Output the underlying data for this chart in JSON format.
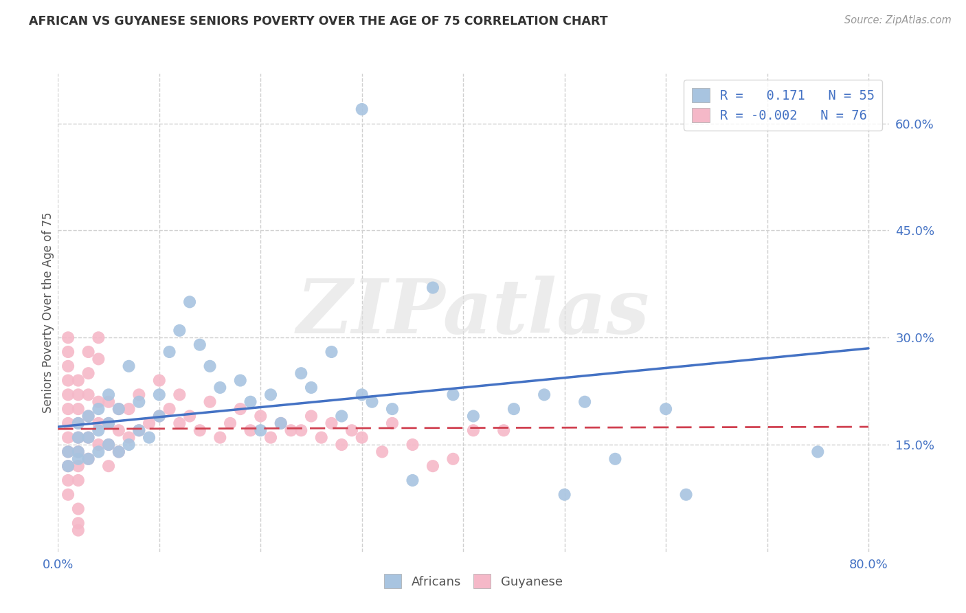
{
  "title": "AFRICAN VS GUYANESE SENIORS POVERTY OVER THE AGE OF 75 CORRELATION CHART",
  "source": "Source: ZipAtlas.com",
  "ylabel": "Seniors Poverty Over the Age of 75",
  "xlim": [
    0.0,
    0.82
  ],
  "ylim": [
    0.0,
    0.67
  ],
  "background_color": "#ffffff",
  "watermark_text": "ZIPatlas",
  "legend_R_african": "0.171",
  "legend_N_african": "55",
  "legend_R_guyanese": "-0.002",
  "legend_N_guyanese": "76",
  "african_color": "#a8c4e0",
  "guyanese_color": "#f5b8c8",
  "african_line_color": "#4472c4",
  "guyanese_line_color": "#d04050",
  "grid_color": "#d0d0d0",
  "africans_x": [
    0.01,
    0.01,
    0.02,
    0.02,
    0.02,
    0.02,
    0.03,
    0.03,
    0.03,
    0.04,
    0.04,
    0.04,
    0.05,
    0.05,
    0.05,
    0.06,
    0.06,
    0.07,
    0.07,
    0.08,
    0.08,
    0.09,
    0.1,
    0.1,
    0.11,
    0.12,
    0.13,
    0.14,
    0.15,
    0.16,
    0.18,
    0.19,
    0.2,
    0.21,
    0.22,
    0.24,
    0.25,
    0.27,
    0.28,
    0.3,
    0.31,
    0.33,
    0.35,
    0.37,
    0.39,
    0.41,
    0.45,
    0.48,
    0.5,
    0.52,
    0.55,
    0.6,
    0.62,
    0.75,
    0.3
  ],
  "africans_y": [
    0.14,
    0.12,
    0.13,
    0.14,
    0.16,
    0.18,
    0.13,
    0.16,
    0.19,
    0.14,
    0.17,
    0.2,
    0.15,
    0.18,
    0.22,
    0.14,
    0.2,
    0.15,
    0.26,
    0.17,
    0.21,
    0.16,
    0.19,
    0.22,
    0.28,
    0.31,
    0.35,
    0.29,
    0.26,
    0.23,
    0.24,
    0.21,
    0.17,
    0.22,
    0.18,
    0.25,
    0.23,
    0.28,
    0.19,
    0.22,
    0.21,
    0.2,
    0.1,
    0.37,
    0.22,
    0.19,
    0.2,
    0.22,
    0.08,
    0.21,
    0.13,
    0.2,
    0.08,
    0.14,
    0.62
  ],
  "guyanese_x": [
    0.01,
    0.01,
    0.01,
    0.01,
    0.01,
    0.01,
    0.01,
    0.01,
    0.01,
    0.01,
    0.01,
    0.01,
    0.02,
    0.02,
    0.02,
    0.02,
    0.02,
    0.02,
    0.02,
    0.02,
    0.02,
    0.02,
    0.02,
    0.03,
    0.03,
    0.03,
    0.03,
    0.03,
    0.03,
    0.04,
    0.04,
    0.04,
    0.04,
    0.04,
    0.05,
    0.05,
    0.05,
    0.05,
    0.06,
    0.06,
    0.06,
    0.07,
    0.07,
    0.08,
    0.08,
    0.09,
    0.1,
    0.1,
    0.11,
    0.12,
    0.12,
    0.13,
    0.14,
    0.15,
    0.16,
    0.17,
    0.18,
    0.19,
    0.2,
    0.21,
    0.22,
    0.23,
    0.24,
    0.25,
    0.26,
    0.27,
    0.28,
    0.29,
    0.3,
    0.32,
    0.33,
    0.35,
    0.37,
    0.39,
    0.41,
    0.44
  ],
  "guyanese_y": [
    0.1,
    0.12,
    0.14,
    0.16,
    0.18,
    0.2,
    0.22,
    0.24,
    0.26,
    0.28,
    0.3,
    0.08,
    0.1,
    0.12,
    0.14,
    0.16,
    0.18,
    0.2,
    0.22,
    0.24,
    0.06,
    0.04,
    0.03,
    0.13,
    0.16,
    0.19,
    0.22,
    0.25,
    0.28,
    0.15,
    0.18,
    0.21,
    0.27,
    0.3,
    0.12,
    0.15,
    0.18,
    0.21,
    0.14,
    0.17,
    0.2,
    0.16,
    0.2,
    0.17,
    0.22,
    0.18,
    0.19,
    0.24,
    0.2,
    0.18,
    0.22,
    0.19,
    0.17,
    0.21,
    0.16,
    0.18,
    0.2,
    0.17,
    0.19,
    0.16,
    0.18,
    0.17,
    0.17,
    0.19,
    0.16,
    0.18,
    0.15,
    0.17,
    0.16,
    0.14,
    0.18,
    0.15,
    0.12,
    0.13,
    0.17,
    0.17
  ]
}
